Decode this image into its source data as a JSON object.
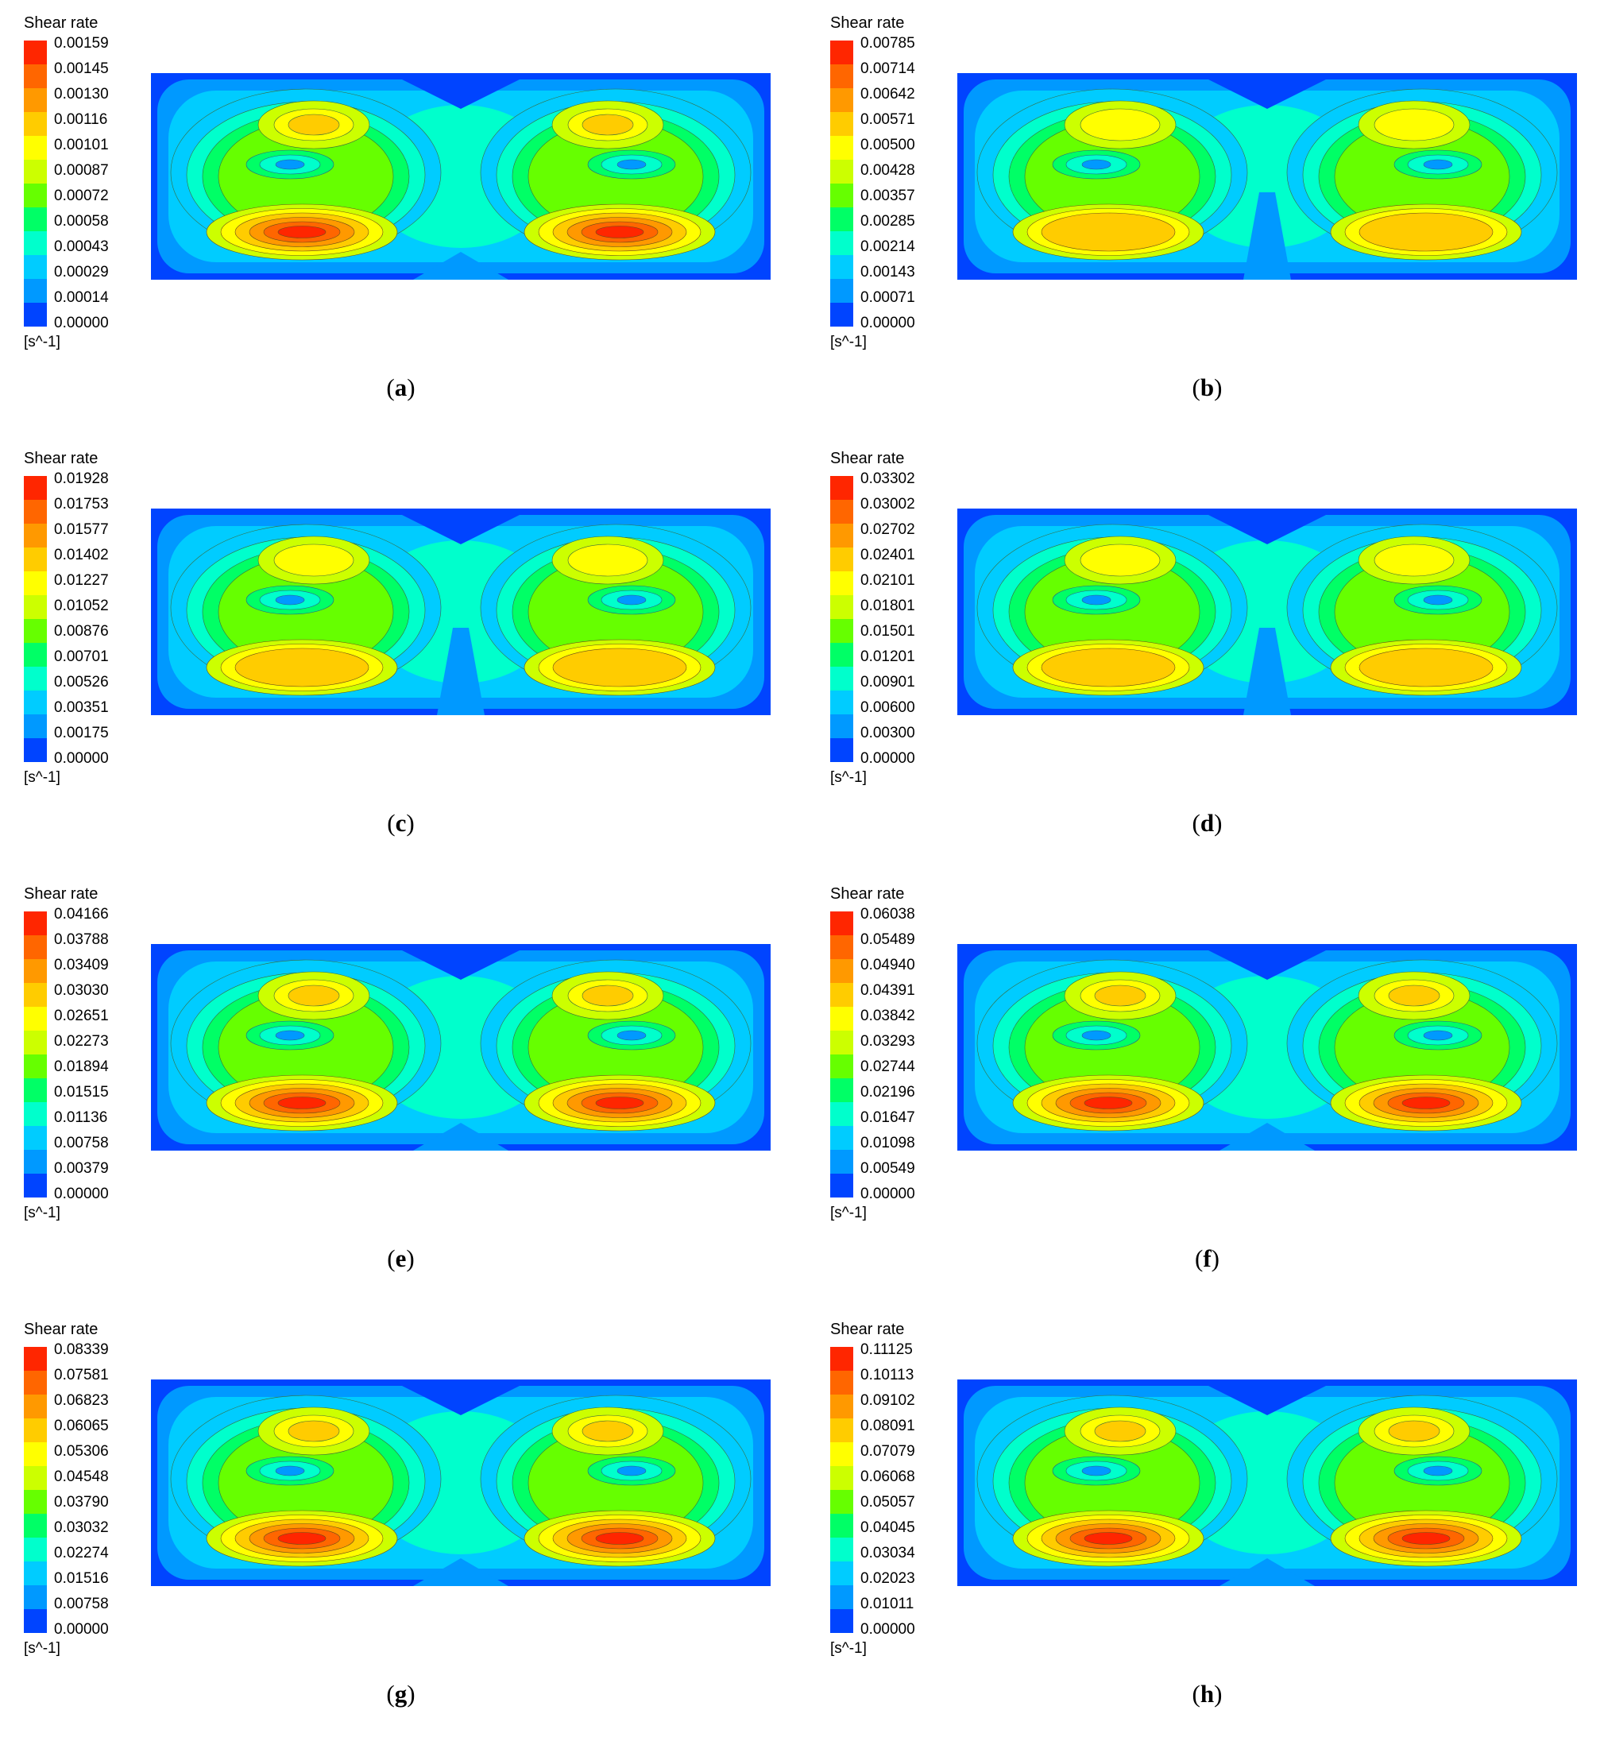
{
  "figure": {
    "panels": [
      {
        "caption": "a",
        "legend_title": "Shear rate",
        "unit": "[s^-1]",
        "ticks": [
          "0.00159",
          "0.00145",
          "0.00130",
          "0.00116",
          "0.00101",
          "0.00087",
          "0.00072",
          "0.00058",
          "0.00043",
          "0.00029",
          "0.00014",
          "0.00000"
        ]
      },
      {
        "caption": "b",
        "legend_title": "Shear rate",
        "unit": "[s^-1]",
        "ticks": [
          "0.00785",
          "0.00714",
          "0.00642",
          "0.00571",
          "0.00500",
          "0.00428",
          "0.00357",
          "0.00285",
          "0.00214",
          "0.00143",
          "0.00071",
          "0.00000"
        ]
      },
      {
        "caption": "c",
        "legend_title": "Shear rate",
        "unit": "[s^-1]",
        "ticks": [
          "0.01928",
          "0.01753",
          "0.01577",
          "0.01402",
          "0.01227",
          "0.01052",
          "0.00876",
          "0.00701",
          "0.00526",
          "0.00351",
          "0.00175",
          "0.00000"
        ]
      },
      {
        "caption": "d",
        "legend_title": "Shear rate",
        "unit": "[s^-1]",
        "ticks": [
          "0.03302",
          "0.03002",
          "0.02702",
          "0.02401",
          "0.02101",
          "0.01801",
          "0.01501",
          "0.01201",
          "0.00901",
          "0.00600",
          "0.00300",
          "0.00000"
        ]
      },
      {
        "caption": "e",
        "legend_title": "Shear rate",
        "unit": "[s^-1]",
        "ticks": [
          "0.04166",
          "0.03788",
          "0.03409",
          "0.03030",
          "0.02651",
          "0.02273",
          "0.01894",
          "0.01515",
          "0.01136",
          "0.00758",
          "0.00379",
          "0.00000"
        ]
      },
      {
        "caption": "f",
        "legend_title": "Shear rate",
        "unit": "[s^-1]",
        "ticks": [
          "0.06038",
          "0.05489",
          "0.04940",
          "0.04391",
          "0.03842",
          "0.03293",
          "0.02744",
          "0.02196",
          "0.01647",
          "0.01098",
          "0.00549",
          "0.00000"
        ]
      },
      {
        "caption": "g",
        "legend_title": "Shear rate",
        "unit": "[s^-1]",
        "ticks": [
          "0.08339",
          "0.07581",
          "0.06823",
          "0.06065",
          "0.05306",
          "0.04548",
          "0.03790",
          "0.03032",
          "0.02274",
          "0.01516",
          "0.00758",
          "0.00000"
        ]
      },
      {
        "caption": "h",
        "legend_title": "Shear rate",
        "unit": "[s^-1]",
        "ticks": [
          "0.11125",
          "0.10113",
          "0.09102",
          "0.08091",
          "0.07079",
          "0.06068",
          "0.05057",
          "0.04045",
          "0.03034",
          "0.02023",
          "0.01011",
          "0.00000"
        ]
      }
    ]
  },
  "chart_data": [
    {
      "type": "heatmap",
      "panel": "a",
      "legend_title": "Shear rate",
      "unit": "[s^-1]",
      "range": [
        0.0,
        0.00159
      ],
      "pattern": "symmetric"
    },
    {
      "type": "heatmap",
      "panel": "b",
      "legend_title": "Shear rate",
      "unit": "[s^-1]",
      "range": [
        0.0,
        0.00785
      ],
      "pattern": "asymmetric-split"
    },
    {
      "type": "heatmap",
      "panel": "c",
      "legend_title": "Shear rate",
      "unit": "[s^-1]",
      "range": [
        0.0,
        0.01928
      ],
      "pattern": "asymmetric-split"
    },
    {
      "type": "heatmap",
      "panel": "d",
      "legend_title": "Shear rate",
      "unit": "[s^-1]",
      "range": [
        0.0,
        0.03302
      ],
      "pattern": "asymmetric-split"
    },
    {
      "type": "heatmap",
      "panel": "e",
      "legend_title": "Shear rate",
      "unit": "[s^-1]",
      "range": [
        0.0,
        0.04166
      ],
      "pattern": "symmetric"
    },
    {
      "type": "heatmap",
      "panel": "f",
      "legend_title": "Shear rate",
      "unit": "[s^-1]",
      "range": [
        0.0,
        0.06038
      ],
      "pattern": "symmetric"
    },
    {
      "type": "heatmap",
      "panel": "g",
      "legend_title": "Shear rate",
      "unit": "[s^-1]",
      "range": [
        0.0,
        0.08339
      ],
      "pattern": "symmetric"
    },
    {
      "type": "heatmap",
      "panel": "h",
      "legend_title": "Shear rate",
      "unit": "[s^-1]",
      "range": [
        0.0,
        0.11125
      ],
      "pattern": "symmetric"
    }
  ],
  "colormap": [
    "#ff2600",
    "#ff6600",
    "#ff9900",
    "#ffcc00",
    "#ffff00",
    "#ccff00",
    "#66ff00",
    "#00ff66",
    "#00ffcc",
    "#00ccff",
    "#0099ff",
    "#0044ff"
  ]
}
